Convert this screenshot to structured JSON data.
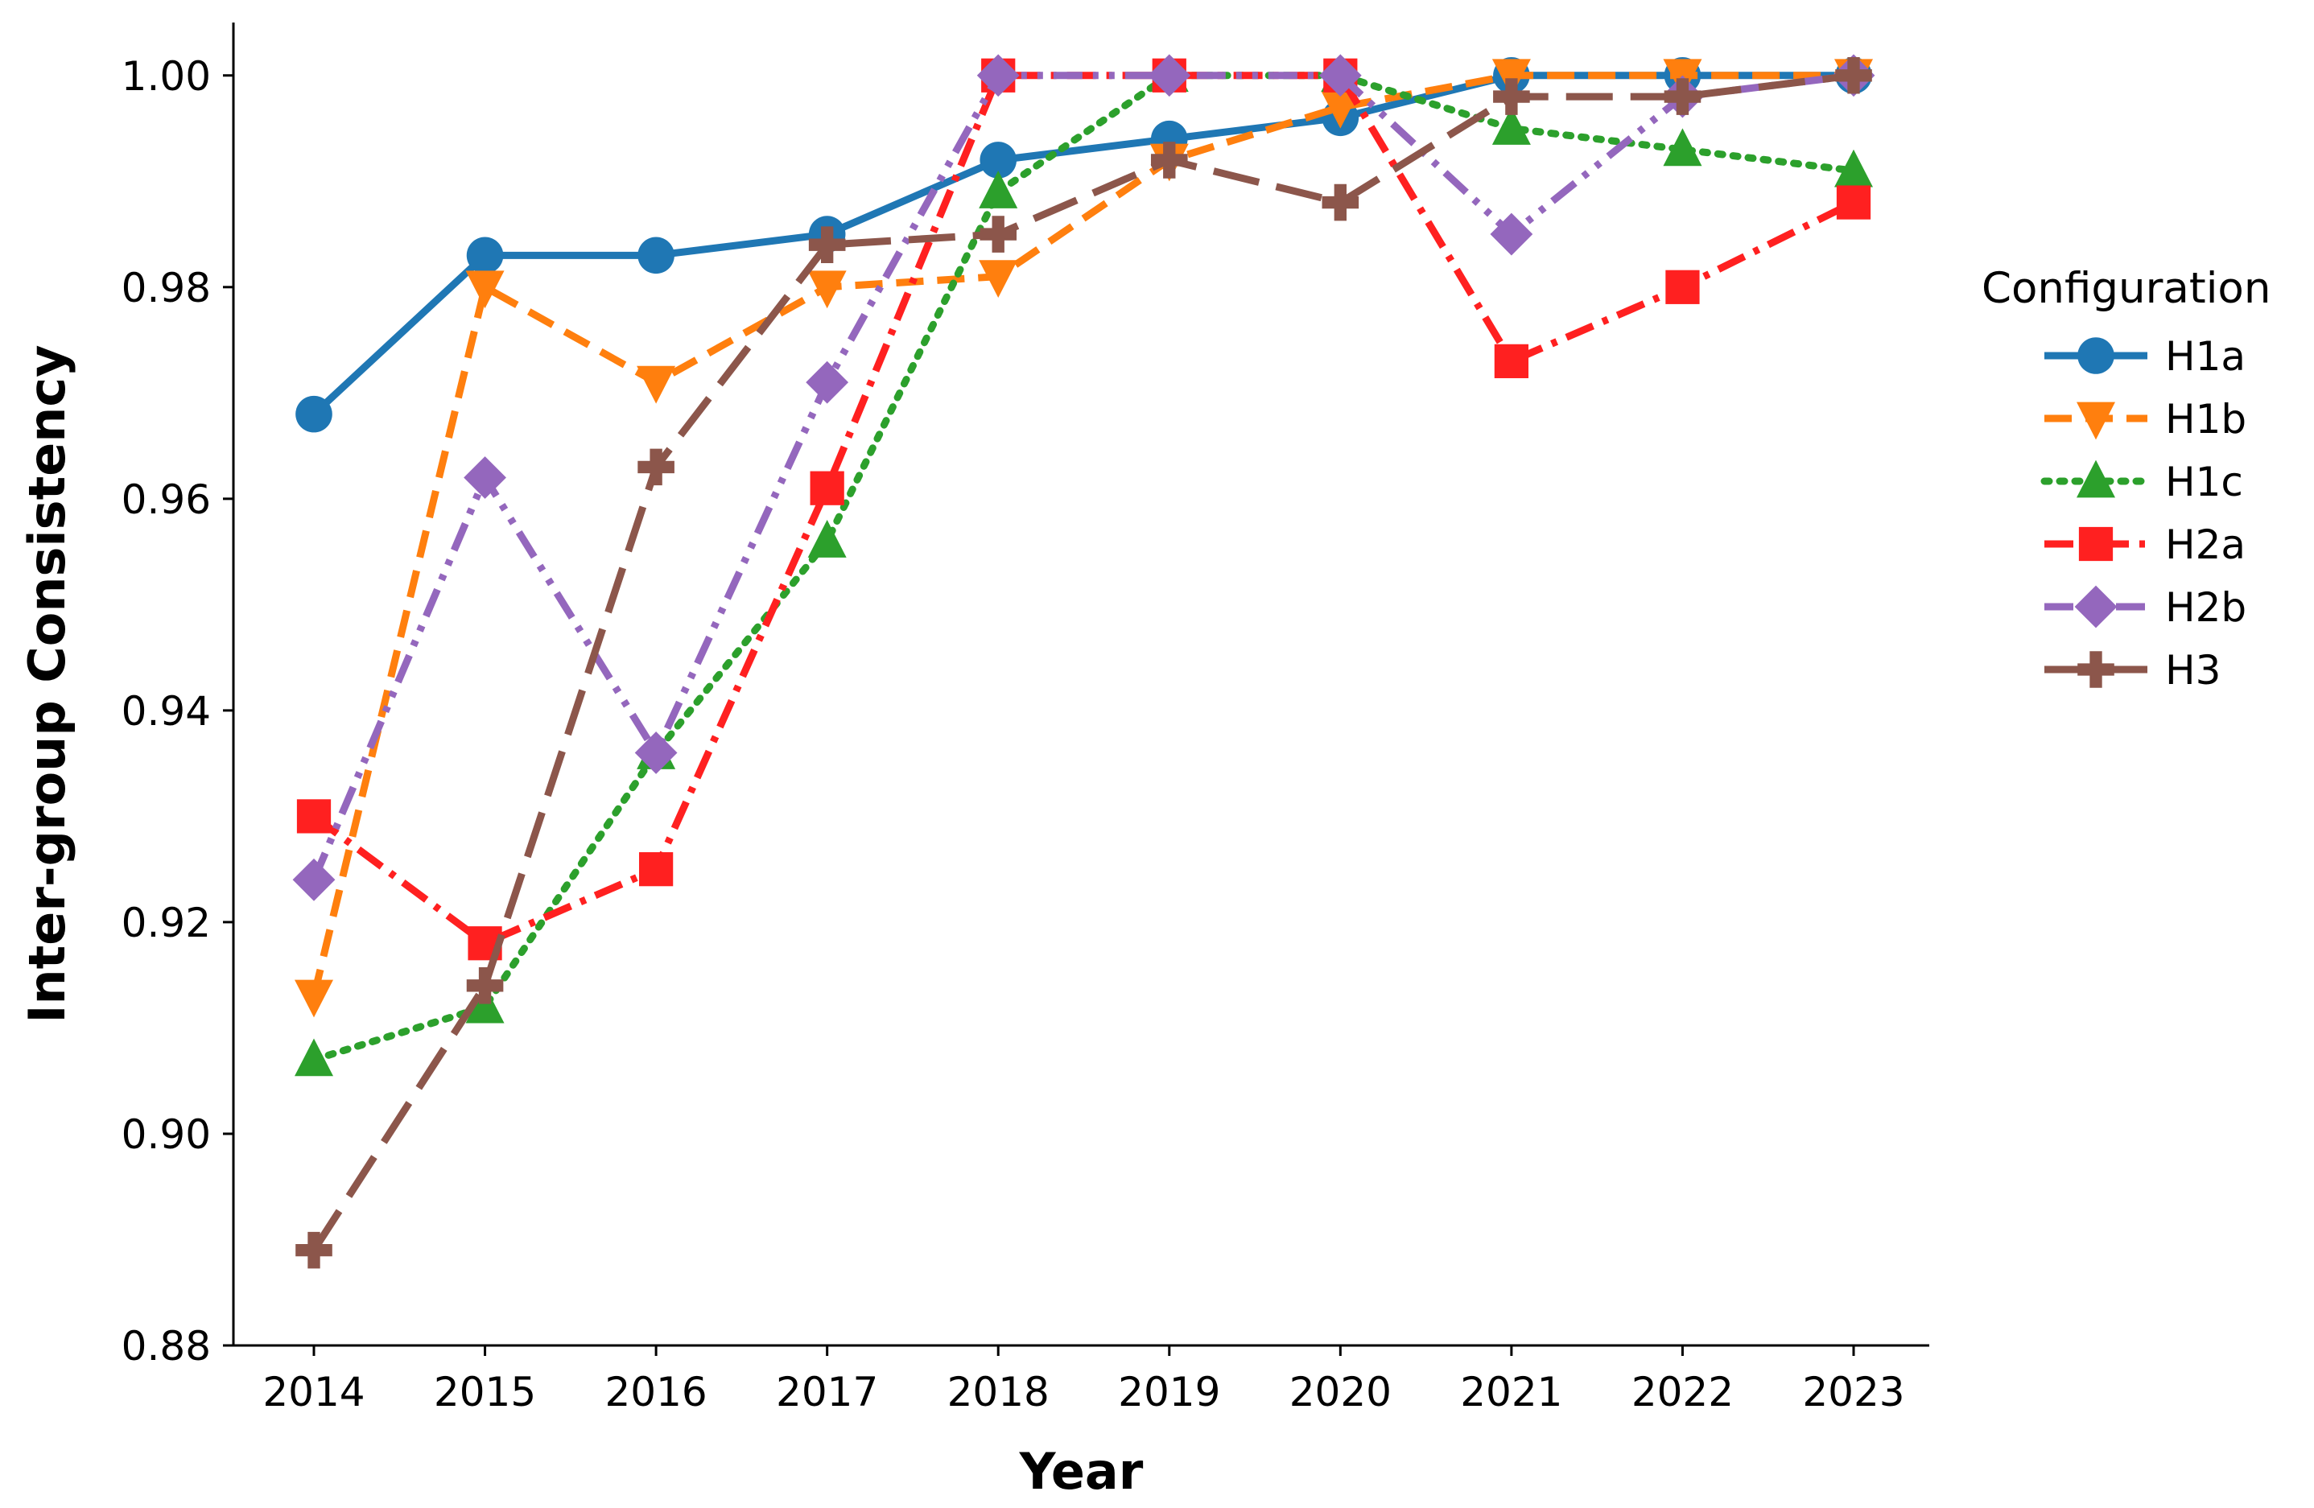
{
  "chart_data": {
    "type": "line",
    "xlabel": "Year",
    "ylabel": "Inter-group Consistency",
    "categories": [
      "2014",
      "2015",
      "2016",
      "2017",
      "2018",
      "2019",
      "2020",
      "2021",
      "2022",
      "2023"
    ],
    "ylim": [
      0.88,
      1.005
    ],
    "y_ticks": [
      "0.88",
      "0.90",
      "0.92",
      "0.94",
      "0.96",
      "0.98",
      "1.00"
    ],
    "grid": false,
    "legend": {
      "title": "Configuration",
      "position": "right"
    },
    "series": [
      {
        "name": "H1a",
        "color": "#1f77b4",
        "marker": "circle",
        "line_style": "solid",
        "values": [
          0.968,
          0.983,
          0.983,
          0.985,
          0.992,
          0.994,
          0.996,
          1.0,
          1.0,
          1.0
        ]
      },
      {
        "name": "H1b",
        "color": "#ff7f0e",
        "marker": "triangle-down",
        "line_style": "dashed",
        "values": [
          0.913,
          0.98,
          0.971,
          0.98,
          0.981,
          0.992,
          0.997,
          1.0,
          1.0,
          1.0
        ]
      },
      {
        "name": "H1c",
        "color": "#2ca02c",
        "marker": "triangle-up",
        "line_style": "dotted",
        "values": [
          0.907,
          0.912,
          0.936,
          0.956,
          0.989,
          1.0,
          1.0,
          0.995,
          0.993,
          0.991
        ]
      },
      {
        "name": "H2a",
        "color": "#ff2020",
        "marker": "square",
        "line_style": "dashdot",
        "values": [
          0.93,
          0.918,
          0.925,
          0.961,
          1.0,
          1.0,
          1.0,
          0.973,
          0.98,
          0.988
        ]
      },
      {
        "name": "H2b",
        "color": "#9467bd",
        "marker": "diamond",
        "line_style": "dashdotdot",
        "values": [
          0.924,
          0.962,
          0.936,
          0.971,
          1.0,
          1.0,
          1.0,
          0.985,
          0.998,
          1.0
        ]
      },
      {
        "name": "H3",
        "color": "#8c564b",
        "marker": "plus",
        "line_style": "longdash",
        "values": [
          0.889,
          0.914,
          0.963,
          0.984,
          0.985,
          0.992,
          0.988,
          0.998,
          0.998,
          1.0
        ]
      }
    ]
  }
}
